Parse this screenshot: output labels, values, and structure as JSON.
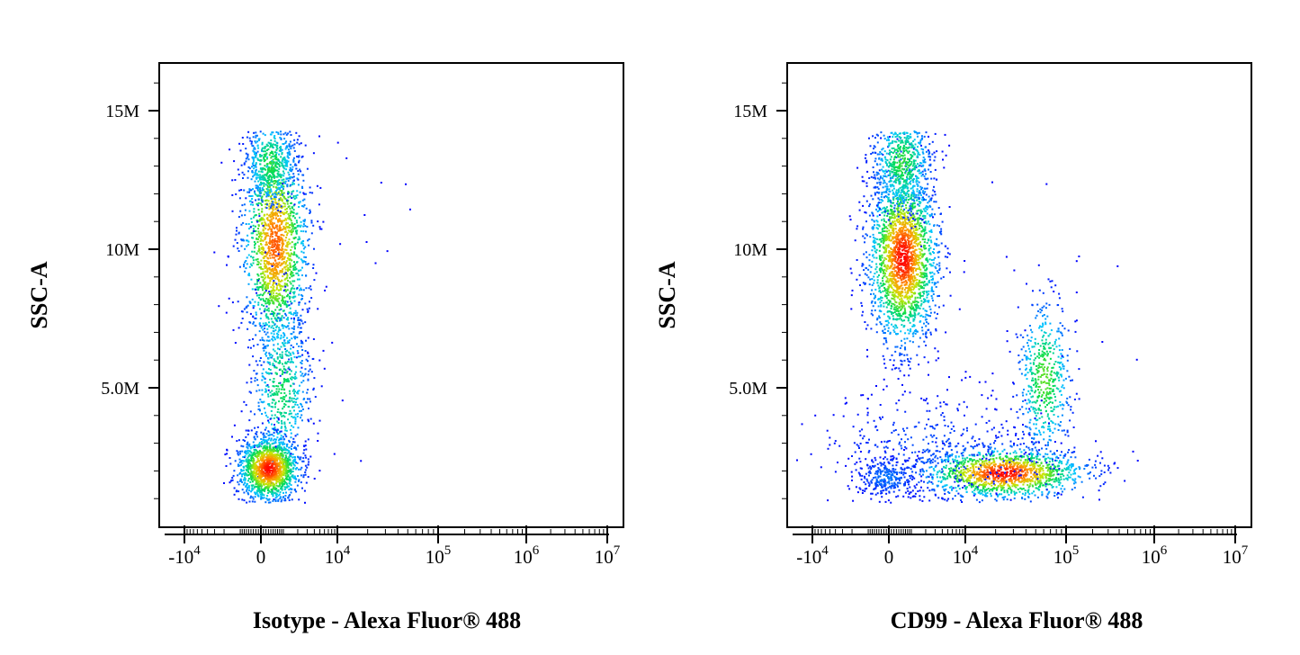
{
  "chart_data": [
    {
      "type": "scatter",
      "title": "",
      "xlabel": "Isotype - Alexa Fluor® 488",
      "ylabel": "SSC-A",
      "x_scale": "biexponential",
      "y_scale": "linear",
      "ylim": [
        0,
        15000000
      ],
      "y_ticks": [
        {
          "value": 15000000,
          "label": "15M"
        },
        {
          "value": 10000000,
          "label": "10M"
        },
        {
          "value": 5000000,
          "label": "5.0M"
        }
      ],
      "x_ticks": [
        {
          "value": -10000,
          "base": "-10",
          "exp": "4"
        },
        {
          "value": 0,
          "base": "0",
          "exp": ""
        },
        {
          "value": 10000,
          "base": "10",
          "exp": "4"
        },
        {
          "value": 100000,
          "base": "10",
          "exp": "5"
        },
        {
          "value": 1000000,
          "base": "10",
          "exp": "6"
        },
        {
          "value": 10000000,
          "base": "10",
          "exp": "7"
        }
      ],
      "populations": [
        {
          "name": "main",
          "x_center": 1500,
          "y_center": 9800000,
          "count": 2600,
          "color_peak": "red"
        },
        {
          "name": "low",
          "x_center": 300,
          "y_center": 1800000,
          "count": 2200,
          "color_peak": "red"
        }
      ]
    },
    {
      "type": "scatter",
      "title": "",
      "xlabel": "CD99 - Alexa Fluor® 488",
      "ylabel": "SSC-A",
      "x_scale": "biexponential",
      "y_scale": "linear",
      "ylim": [
        0,
        15000000
      ],
      "y_ticks": [
        {
          "value": 15000000,
          "label": "15M"
        },
        {
          "value": 10000000,
          "label": "10M"
        },
        {
          "value": 5000000,
          "label": "5.0M"
        }
      ],
      "x_ticks": [
        {
          "value": -10000,
          "base": "-10",
          "exp": "4"
        },
        {
          "value": 0,
          "base": "0",
          "exp": ""
        },
        {
          "value": 10000,
          "base": "10",
          "exp": "4"
        },
        {
          "value": 100000,
          "base": "10",
          "exp": "5"
        },
        {
          "value": 1000000,
          "base": "10",
          "exp": "6"
        },
        {
          "value": 10000000,
          "base": "10",
          "exp": "7"
        }
      ],
      "populations": [
        {
          "name": "CD99-negative high SSC",
          "x_center": 1500,
          "y_center": 9500000,
          "count": 2600,
          "color_peak": "red"
        },
        {
          "name": "CD99-positive low SSC",
          "x_center": 25000,
          "y_center": 1800000,
          "count": 2200,
          "color_peak": "red"
        },
        {
          "name": "CD99-positive mid SSC",
          "x_center": 50000,
          "y_center": 5000000,
          "count": 700,
          "color_peak": "green"
        }
      ]
    }
  ]
}
